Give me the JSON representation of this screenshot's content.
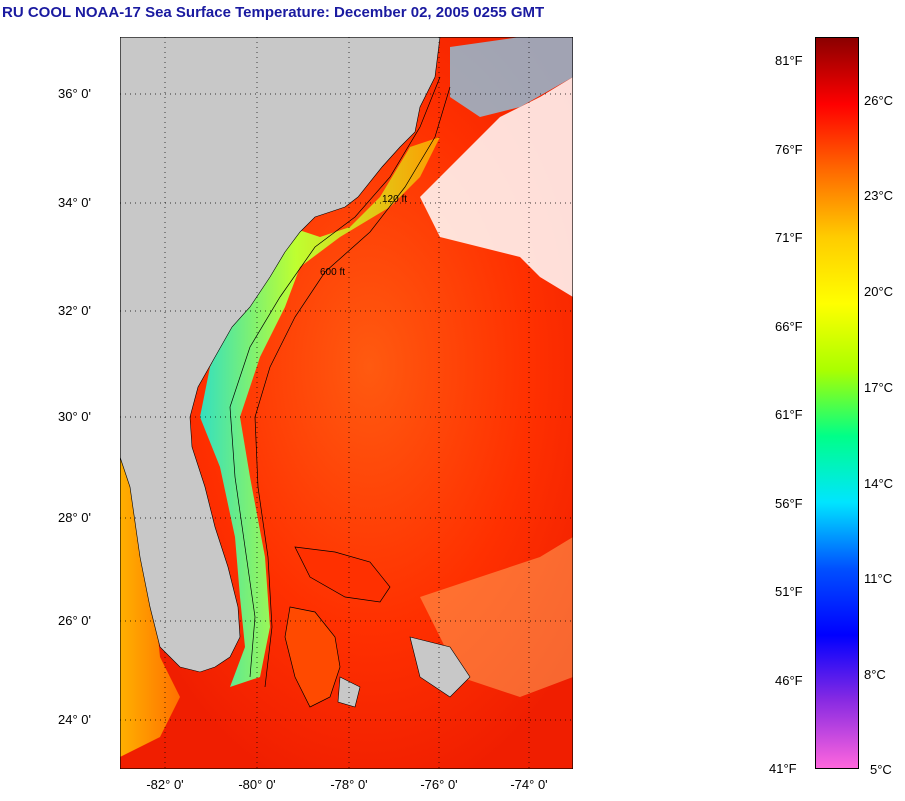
{
  "title": "RU COOL  NOAA-17  Sea Surface Temperature:  December 02, 2005 0255 GMT",
  "lat_labels": [
    "36° 0'",
    "34° 0'",
    "32° 0'",
    "30° 0'",
    "28° 0'",
    "26° 0'",
    "24° 0'"
  ],
  "lon_labels": [
    "-82° 0'",
    "-80° 0'",
    "-78° 0'",
    "-76° 0'",
    "-74° 0'"
  ],
  "colorbar": {
    "fahrenheit_labels": [
      "81°F",
      "76°F",
      "71°F",
      "66°F",
      "61°F",
      "56°F",
      "51°F",
      "46°F",
      "41°F"
    ],
    "celsius_labels": [
      "26°C",
      "23°C",
      "20°C",
      "17°C",
      "14°C",
      "11°C",
      "8°C",
      "5°C"
    ],
    "colors": [
      "#8b0000",
      "#ff0000",
      "#ff6a00",
      "#ffcc00",
      "#ffff00",
      "#aaff00",
      "#00ff88",
      "#00e5ff",
      "#0050ff",
      "#0000ff",
      "#8a2be2",
      "#ff66dd"
    ]
  },
  "depth_contour_labels": [
    "120 ft",
    "600 ft"
  ],
  "colors": {
    "land": "#c8c8c8",
    "warm_water": "#ff2a00",
    "cool_shelf": "#ffd200",
    "cold_coast": "#33e0c0",
    "cloud": "#ffffff",
    "title": "#1a1aa0"
  }
}
